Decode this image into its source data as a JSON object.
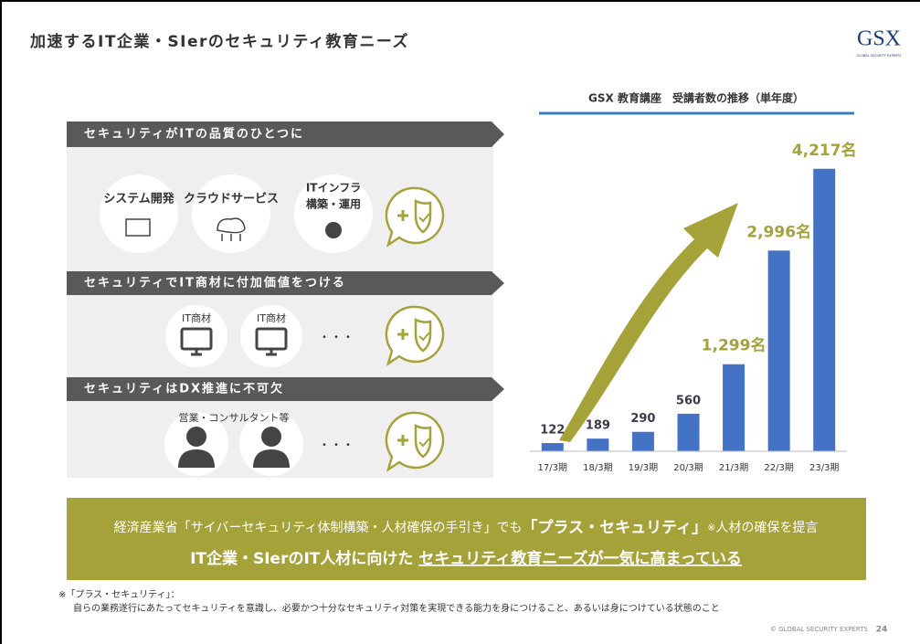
{
  "header": {
    "title": "加速するIT企業・SIerのセキュリティ教育ニーズ",
    "logo": "GSX",
    "logo_tagline": "GLOBAL SECURITY EXPERTS"
  },
  "sections": [
    {
      "heading": "セキュリティがITの品質のひとつに",
      "items": [
        [
          "システム開発"
        ],
        [
          "クラウドサービス"
        ],
        [
          "ITインフラ",
          "構築・運用"
        ]
      ]
    },
    {
      "heading": "セキュリティでIT商材に付加価値をつける",
      "items": [
        [
          "IT商材"
        ],
        [
          "IT商材"
        ]
      ],
      "more": "・・・"
    },
    {
      "heading": "セキュリティはDX推進に不可欠",
      "items": [
        [
          "営業・コンサルタント等"
        ]
      ],
      "more": "・・・"
    }
  ],
  "chart_data": {
    "type": "bar",
    "title": "GSX 教育講座　受講者数の推移（単年度）",
    "categories": [
      "17/3期",
      "18/3期",
      "19/3期",
      "20/3期",
      "21/3期",
      "22/3期",
      "23/3期"
    ],
    "values": [
      122,
      189,
      290,
      560,
      1299,
      2996,
      4217
    ],
    "value_labels": [
      "122",
      "189",
      "290",
      "560",
      "1,299名",
      "2,996名",
      "4,217名"
    ],
    "label_colors": [
      "#3a3a4a",
      "#3a3a4a",
      "#3a3a4a",
      "#3a3a4a",
      "#a6a23a",
      "#a6a23a",
      "#a6a23a"
    ],
    "color": "#4472c4",
    "ylim": [
      0,
      4500
    ]
  },
  "banner": {
    "line1": [
      "経済産業省「サイバーセキュリティ体制構築・人材確保の手引き」でも",
      "「プラス・セキュリティ」",
      "※",
      "人材の確保を提言"
    ],
    "line2": [
      "IT企業・SIerのIT人材に向けた",
      "セキュリティ教育ニーズが一気に高まっている"
    ]
  },
  "footnote": {
    "term": "※「プラス・セキュリティ」：",
    "text": "自らの業務遂行にあたってセキュリティを意識し、必要かつ十分なセキュリティ対策を実現できる能力を身につけること、あるいは身につけている状態のこと"
  },
  "footer": {
    "copyright": "© GLOBAL SECURITY EXPERTS",
    "page": "24"
  }
}
